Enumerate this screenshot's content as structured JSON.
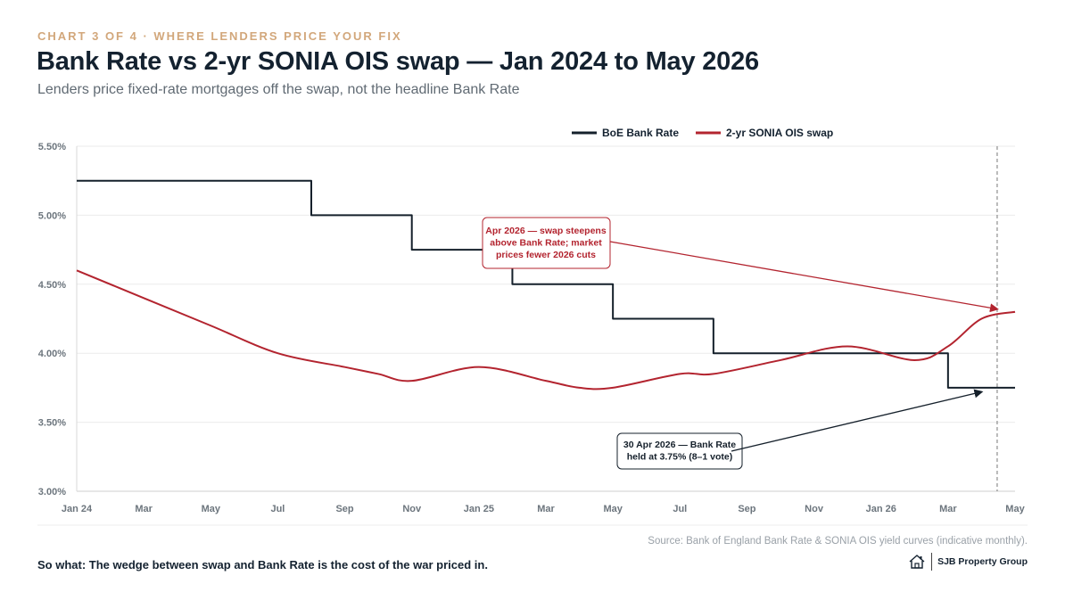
{
  "header": {
    "kicker": "CHART 3 OF 4 · WHERE LENDERS PRICE YOUR FIX",
    "title": "Bank Rate vs 2-yr SONIA OIS swap — Jan 2024 to May 2026",
    "subtitle": "Lenders price fixed-rate mortgages off the swap, not the headline Bank Rate"
  },
  "chart_data": {
    "type": "line",
    "x_ticks": [
      "Jan 24",
      "Mar",
      "May",
      "Jul",
      "Sep",
      "Nov",
      "Jan 25",
      "Mar",
      "May",
      "Jul",
      "Sep",
      "Nov",
      "Jan 26",
      "Mar",
      "May"
    ],
    "y_ticks": [
      "3.00%",
      "3.50%",
      "4.00%",
      "4.50%",
      "5.00%",
      "5.50%"
    ],
    "ylim": [
      3.0,
      5.5
    ],
    "xlim_months": [
      "2024-01",
      "2026-05"
    ],
    "grid": true,
    "legend_position": "top-right",
    "series": [
      {
        "name": "BoE Bank Rate",
        "color": "#15202b",
        "step": true,
        "points": [
          [
            "2024-01",
            5.25
          ],
          [
            "2024-08",
            5.0
          ],
          [
            "2024-11",
            4.75
          ],
          [
            "2025-02",
            4.5
          ],
          [
            "2025-05",
            4.25
          ],
          [
            "2025-08",
            4.0
          ],
          [
            "2026-03",
            3.75
          ],
          [
            "2026-05",
            3.75
          ]
        ]
      },
      {
        "name": "2-yr SONIA OIS swap",
        "color": "#b3242f",
        "step": false,
        "points": [
          [
            "2024-01",
            4.6
          ],
          [
            "2024-03",
            4.4
          ],
          [
            "2024-05",
            4.2
          ],
          [
            "2024-07",
            4.0
          ],
          [
            "2024-09",
            3.9
          ],
          [
            "2024-10",
            3.85
          ],
          [
            "2024-11",
            3.8
          ],
          [
            "2025-01",
            3.9
          ],
          [
            "2025-03",
            3.8
          ],
          [
            "2025-04",
            3.75
          ],
          [
            "2025-05",
            3.75
          ],
          [
            "2025-07",
            3.85
          ],
          [
            "2025-08",
            3.85
          ],
          [
            "2025-10",
            3.95
          ],
          [
            "2025-12",
            4.05
          ],
          [
            "2026-02",
            3.95
          ],
          [
            "2026-03",
            4.05
          ],
          [
            "2026-04",
            4.25
          ],
          [
            "2026-05",
            4.3
          ]
        ]
      }
    ],
    "marker_line": "2026-04-15",
    "annotations": [
      {
        "lines": [
          "Apr 2026 — swap steepens",
          "above Bank Rate; market",
          "prices fewer 2026 cuts"
        ],
        "color": "#b3242f",
        "target": [
          "2026-04-15",
          4.32
        ]
      },
      {
        "lines": [
          "30 Apr 2026 — Bank Rate",
          "held at 3.75% (8–1 vote)"
        ],
        "color": "#15202b",
        "target": [
          "2026-04-01",
          3.72
        ]
      }
    ]
  },
  "footer": {
    "source": "Source: Bank of England Bank Rate & SONIA OIS yield curves (indicative monthly).",
    "so_what": "So what: The wedge between swap and Bank Rate is the cost of the war priced in.",
    "brand": "SJB Property Group"
  },
  "icons": {
    "brand_logo": "house-icon"
  }
}
